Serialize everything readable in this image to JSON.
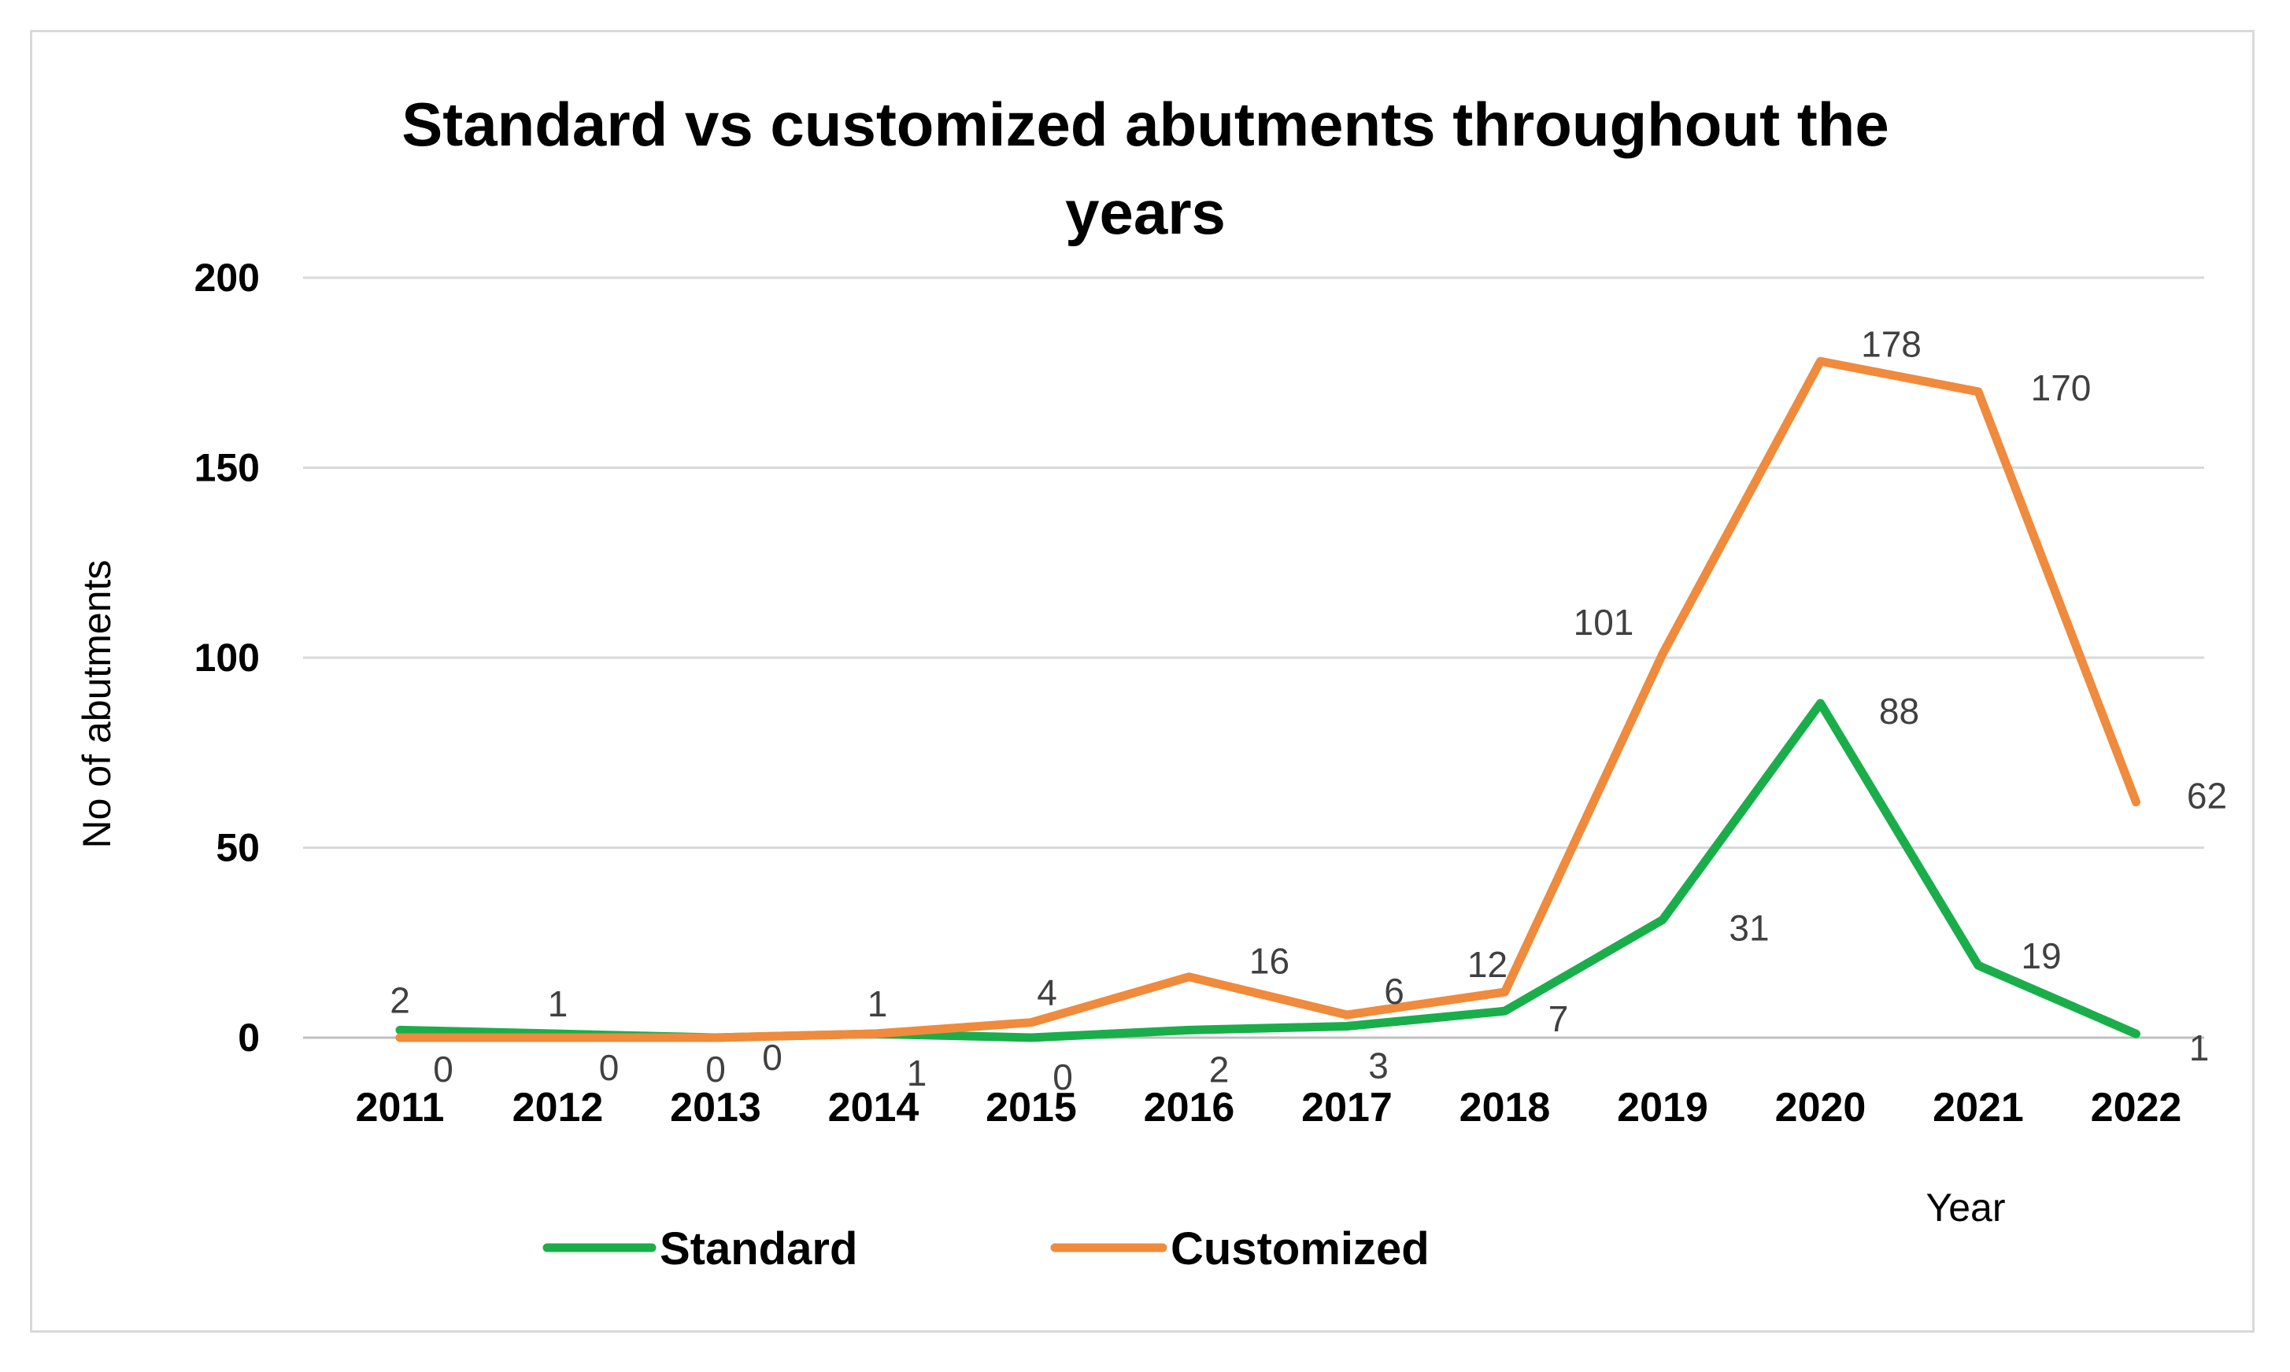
{
  "chart_data": {
    "type": "line",
    "title_lines": [
      "Standard vs customized abutments throughout the",
      "years"
    ],
    "xlabel": "Year",
    "ylabel": "No of abutments",
    "categories": [
      "2011",
      "2012",
      "2013",
      "2014",
      "2015",
      "2016",
      "2017",
      "2018",
      "2019",
      "2020",
      "2021",
      "2022"
    ],
    "ylim": [
      0,
      200
    ],
    "yticks": [
      0,
      50,
      100,
      150,
      200
    ],
    "grid": true,
    "legend_position": "bottom",
    "series": [
      {
        "name": "Standard",
        "color": "#1aae4b",
        "values": [
          2,
          1,
          0,
          1,
          0,
          2,
          3,
          7,
          31,
          88,
          19,
          1
        ]
      },
      {
        "name": "Customized",
        "color": "#f08a3c",
        "values": [
          0,
          0,
          0,
          1,
          4,
          16,
          6,
          12,
          101,
          178,
          170,
          62
        ]
      }
    ]
  }
}
